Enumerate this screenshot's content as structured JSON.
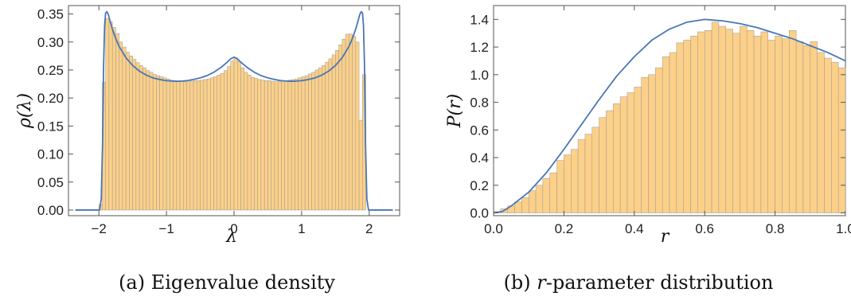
{
  "chart_data": [
    {
      "type": "bar",
      "caption": "(a) Eigenvalue density",
      "xlabel": "λ",
      "ylabel": "ρ(λ)",
      "xlim": [
        -2.45,
        2.45
      ],
      "ylim": [
        -0.01,
        0.365
      ],
      "xticks": [
        -2,
        -1,
        0,
        1,
        2
      ],
      "xtick_labels": [
        "−2",
        "−1",
        "0",
        "1",
        "2"
      ],
      "yticks": [
        0.0,
        0.05,
        0.1,
        0.15,
        0.2,
        0.25,
        0.3,
        0.35
      ],
      "ytick_labels": [
        "0.00",
        "0.05",
        "0.10",
        "0.15",
        "0.20",
        "0.25",
        "0.30",
        "0.35"
      ],
      "bar_color": "#fcd088",
      "curve_color": "#4a76b5",
      "histogram": {
        "x_start": -2.0,
        "bin_width": 0.05,
        "values": [
          0.01,
          0.228,
          0.342,
          0.336,
          0.326,
          0.315,
          0.3,
          0.291,
          0.282,
          0.275,
          0.269,
          0.263,
          0.258,
          0.254,
          0.249,
          0.246,
          0.242,
          0.24,
          0.238,
          0.236,
          0.234,
          0.232,
          0.231,
          0.23,
          0.23,
          0.229,
          0.229,
          0.23,
          0.231,
          0.231,
          0.232,
          0.233,
          0.234,
          0.236,
          0.238,
          0.241,
          0.244,
          0.249,
          0.256,
          0.266,
          0.272,
          0.265,
          0.254,
          0.246,
          0.241,
          0.237,
          0.235,
          0.233,
          0.232,
          0.231,
          0.231,
          0.23,
          0.229,
          0.23,
          0.231,
          0.231,
          0.232,
          0.233,
          0.234,
          0.236,
          0.238,
          0.24,
          0.243,
          0.246,
          0.25,
          0.254,
          0.258,
          0.264,
          0.27,
          0.277,
          0.285,
          0.295,
          0.305,
          0.314,
          0.314,
          0.31,
          0.3,
          0.16,
          0.242
        ]
      },
      "curve": {
        "x": [
          -2.35,
          -1.99,
          -1.965,
          -1.945,
          -1.93,
          -1.915,
          -1.9,
          -1.88,
          -1.86,
          -1.84,
          -1.8,
          -1.75,
          -1.7,
          -1.6,
          -1.5,
          -1.4,
          -1.3,
          -1.2,
          -1.1,
          -1.0,
          -0.9,
          -0.8,
          -0.7,
          -0.6,
          -0.5,
          -0.4,
          -0.3,
          -0.2,
          -0.1,
          -0.05,
          0.0,
          0.05,
          0.1,
          0.2,
          0.3,
          0.4,
          0.5,
          0.6,
          0.7,
          0.8,
          0.9,
          1.0,
          1.1,
          1.2,
          1.3,
          1.4,
          1.5,
          1.6,
          1.7,
          1.75,
          1.8,
          1.84,
          1.86,
          1.88,
          1.9,
          1.915,
          1.93,
          1.945,
          1.965,
          1.99,
          2.35
        ],
        "y": [
          0.0,
          0.0,
          0.02,
          0.12,
          0.26,
          0.33,
          0.352,
          0.354,
          0.349,
          0.34,
          0.323,
          0.306,
          0.292,
          0.272,
          0.258,
          0.248,
          0.241,
          0.236,
          0.233,
          0.231,
          0.23,
          0.23,
          0.231,
          0.233,
          0.236,
          0.24,
          0.246,
          0.254,
          0.264,
          0.27,
          0.273,
          0.27,
          0.264,
          0.254,
          0.246,
          0.24,
          0.236,
          0.233,
          0.231,
          0.23,
          0.23,
          0.231,
          0.233,
          0.236,
          0.241,
          0.248,
          0.258,
          0.272,
          0.292,
          0.306,
          0.323,
          0.34,
          0.349,
          0.354,
          0.352,
          0.33,
          0.26,
          0.12,
          0.02,
          0.0,
          0.0
        ]
      }
    },
    {
      "type": "bar",
      "caption_prefix": "(b) ",
      "caption_italic": "r",
      "caption_suffix": "-parameter distribution",
      "xlabel": "r",
      "ylabel": "P(r)",
      "xlim": [
        0.0,
        1.0
      ],
      "ylim": [
        -0.02,
        1.5
      ],
      "xticks": [
        0.0,
        0.2,
        0.4,
        0.6,
        0.8,
        1.0
      ],
      "xtick_labels": [
        "0.0",
        "0.2",
        "0.4",
        "0.6",
        "0.8",
        "1.0"
      ],
      "yticks": [
        0.0,
        0.2,
        0.4,
        0.6,
        0.8,
        1.0,
        1.2,
        1.4
      ],
      "ytick_labels": [
        "0.0",
        "0.2",
        "0.4",
        "0.6",
        "0.8",
        "1.0",
        "1.2",
        "1.4"
      ],
      "bar_color": "#fcd088",
      "curve_color": "#4a76b5",
      "histogram": {
        "x_start": 0.0,
        "bin_width": 0.02,
        "values": [
          0.01,
          0.03,
          0.05,
          0.08,
          0.11,
          0.16,
          0.2,
          0.25,
          0.29,
          0.38,
          0.42,
          0.46,
          0.53,
          0.57,
          0.62,
          0.69,
          0.74,
          0.79,
          0.84,
          0.87,
          0.91,
          0.98,
          1.0,
          1.05,
          1.13,
          1.16,
          1.23,
          1.25,
          1.28,
          1.31,
          1.32,
          1.38,
          1.35,
          1.33,
          1.3,
          1.35,
          1.32,
          1.28,
          1.31,
          1.25,
          1.28,
          1.26,
          1.32,
          1.24,
          1.21,
          1.24,
          1.16,
          1.12,
          1.09,
          1.05
        ]
      },
      "curve": {
        "x": [
          0.0,
          0.025,
          0.05,
          0.1,
          0.15,
          0.2,
          0.25,
          0.3,
          0.35,
          0.4,
          0.45,
          0.5,
          0.55,
          0.6,
          0.65,
          0.7,
          0.75,
          0.8,
          0.85,
          0.9,
          0.95,
          1.0
        ],
        "y": [
          0.0,
          0.01,
          0.05,
          0.15,
          0.29,
          0.46,
          0.64,
          0.82,
          0.99,
          1.13,
          1.25,
          1.33,
          1.38,
          1.4,
          1.39,
          1.37,
          1.34,
          1.3,
          1.26,
          1.21,
          1.16,
          1.1
        ]
      }
    }
  ]
}
